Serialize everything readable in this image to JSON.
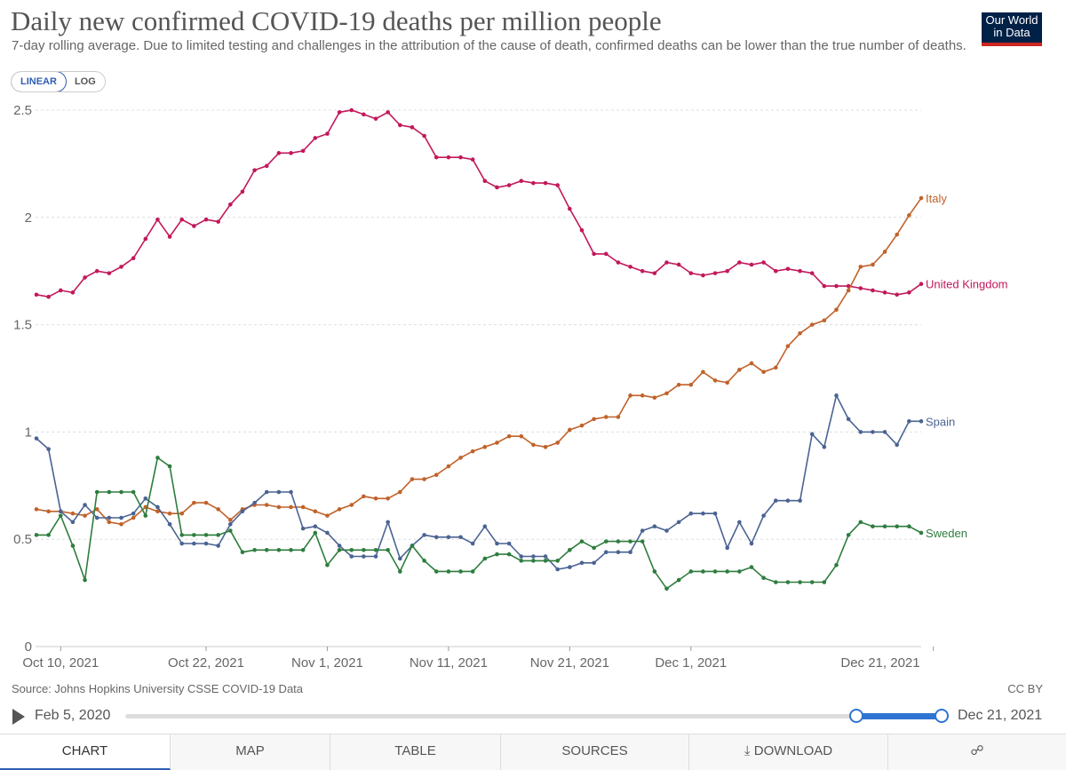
{
  "header": {
    "title": "Daily new confirmed COVID-19 deaths per million people",
    "subtitle": "7-day rolling average. Due to limited testing and challenges in the attribution of the cause of death, confirmed deaths can be lower than the true number of deaths.",
    "logo_line1": "Our World",
    "logo_line2": "in Data"
  },
  "scale": {
    "linear_label": "LINEAR",
    "log_label": "LOG",
    "selected": "LINEAR"
  },
  "footer": {
    "source": "Source: Johns Hopkins University CSSE COVID-19 Data",
    "license": "CC BY"
  },
  "timeline": {
    "start_label": "Feb 5, 2020",
    "end_label": "Dec 21, 2021"
  },
  "tabs": {
    "chart": "CHART",
    "map": "MAP",
    "table": "TABLE",
    "sources": "SOURCES",
    "download": "DOWNLOAD"
  },
  "colors": {
    "united_kingdom": "#c2185b",
    "italy": "#c0622a",
    "spain": "#4a6392",
    "sweden": "#2e7d3e"
  },
  "chart_data": {
    "type": "line",
    "title": "Daily new confirmed COVID-19 deaths per million people",
    "xlabel": "",
    "ylabel": "",
    "ylim": [
      0,
      2.5
    ],
    "yticks": [
      "0",
      "0.5",
      "1",
      "1.5",
      "2",
      "2.5"
    ],
    "grid": true,
    "legend": "right-end labels",
    "start_date": "2021-10-08",
    "x_tick_labels": [
      {
        "label": "Oct 10, 2021",
        "day": 2
      },
      {
        "label": "Oct 22, 2021",
        "day": 14
      },
      {
        "label": "Nov 1, 2021",
        "day": 24
      },
      {
        "label": "Nov 11, 2021",
        "day": 34
      },
      {
        "label": "Nov 21, 2021",
        "day": 44
      },
      {
        "label": "Dec 1, 2021",
        "day": 54
      },
      {
        "label": "Dec 21, 2021",
        "day": 74
      }
    ],
    "series": [
      {
        "name": "United Kingdom",
        "color": "#c2185b",
        "values": [
          1.64,
          1.63,
          1.66,
          1.65,
          1.72,
          1.75,
          1.74,
          1.77,
          1.81,
          1.9,
          1.99,
          1.91,
          1.99,
          1.96,
          1.99,
          1.98,
          2.06,
          2.12,
          2.22,
          2.24,
          2.3,
          2.3,
          2.31,
          2.37,
          2.39,
          2.49,
          2.5,
          2.48,
          2.46,
          2.49,
          2.43,
          2.42,
          2.38,
          2.28,
          2.28,
          2.28,
          2.27,
          2.17,
          2.14,
          2.15,
          2.17,
          2.16,
          2.16,
          2.15,
          2.04,
          1.94,
          1.83,
          1.83,
          1.79,
          1.77,
          1.75,
          1.74,
          1.79,
          1.78,
          1.74,
          1.73,
          1.74,
          1.75,
          1.79,
          1.78,
          1.79,
          1.75,
          1.76,
          1.75,
          1.74,
          1.68,
          1.68,
          1.68,
          1.67,
          1.66,
          1.65,
          1.64,
          1.65,
          1.69
        ]
      },
      {
        "name": "Italy",
        "color": "#c0622a",
        "values": [
          0.64,
          0.63,
          0.63,
          0.62,
          0.61,
          0.64,
          0.58,
          0.57,
          0.6,
          0.65,
          0.63,
          0.62,
          0.62,
          0.67,
          0.67,
          0.64,
          0.59,
          0.64,
          0.66,
          0.66,
          0.65,
          0.65,
          0.65,
          0.63,
          0.61,
          0.64,
          0.66,
          0.7,
          0.69,
          0.69,
          0.72,
          0.78,
          0.78,
          0.8,
          0.84,
          0.88,
          0.91,
          0.93,
          0.95,
          0.98,
          0.98,
          0.94,
          0.93,
          0.95,
          1.01,
          1.03,
          1.06,
          1.07,
          1.07,
          1.17,
          1.17,
          1.16,
          1.18,
          1.22,
          1.22,
          1.28,
          1.24,
          1.23,
          1.29,
          1.32,
          1.28,
          1.3,
          1.4,
          1.46,
          1.5,
          1.52,
          1.57,
          1.66,
          1.77,
          1.78,
          1.84,
          1.92,
          2.01,
          2.09
        ]
      },
      {
        "name": "Spain",
        "color": "#4a6392",
        "values": [
          0.97,
          0.92,
          0.63,
          0.58,
          0.66,
          0.6,
          0.6,
          0.6,
          0.62,
          0.69,
          0.65,
          0.57,
          0.48,
          0.48,
          0.48,
          0.47,
          0.57,
          0.63,
          0.67,
          0.72,
          0.72,
          0.72,
          0.55,
          0.56,
          0.53,
          0.47,
          0.42,
          0.42,
          0.42,
          0.58,
          0.41,
          0.47,
          0.52,
          0.51,
          0.51,
          0.51,
          0.48,
          0.56,
          0.48,
          0.48,
          0.42,
          0.42,
          0.42,
          0.36,
          0.37,
          0.39,
          0.39,
          0.44,
          0.44,
          0.44,
          0.54,
          0.56,
          0.54,
          0.58,
          0.62,
          0.62,
          0.62,
          0.46,
          0.58,
          0.48,
          0.61,
          0.68,
          0.68,
          0.68,
          0.99,
          0.93,
          1.17,
          1.06,
          1.0,
          1.0,
          1.0,
          0.94,
          1.05,
          1.05
        ]
      },
      {
        "name": "Sweden",
        "color": "#2e7d3e",
        "values": [
          0.52,
          0.52,
          0.61,
          0.47,
          0.31,
          0.72,
          0.72,
          0.72,
          0.72,
          0.61,
          0.88,
          0.84,
          0.52,
          0.52,
          0.52,
          0.52,
          0.54,
          0.44,
          0.45,
          0.45,
          0.45,
          0.45,
          0.45,
          0.53,
          0.38,
          0.45,
          0.45,
          0.45,
          0.45,
          0.45,
          0.35,
          0.47,
          0.4,
          0.35,
          0.35,
          0.35,
          0.35,
          0.41,
          0.43,
          0.43,
          0.4,
          0.4,
          0.4,
          0.4,
          0.45,
          0.49,
          0.46,
          0.49,
          0.49,
          0.49,
          0.49,
          0.35,
          0.27,
          0.31,
          0.35,
          0.35,
          0.35,
          0.35,
          0.35,
          0.37,
          0.32,
          0.3,
          0.3,
          0.3,
          0.3,
          0.3,
          0.38,
          0.52,
          0.58,
          0.56,
          0.56,
          0.56,
          0.56,
          0.53
        ]
      }
    ]
  }
}
